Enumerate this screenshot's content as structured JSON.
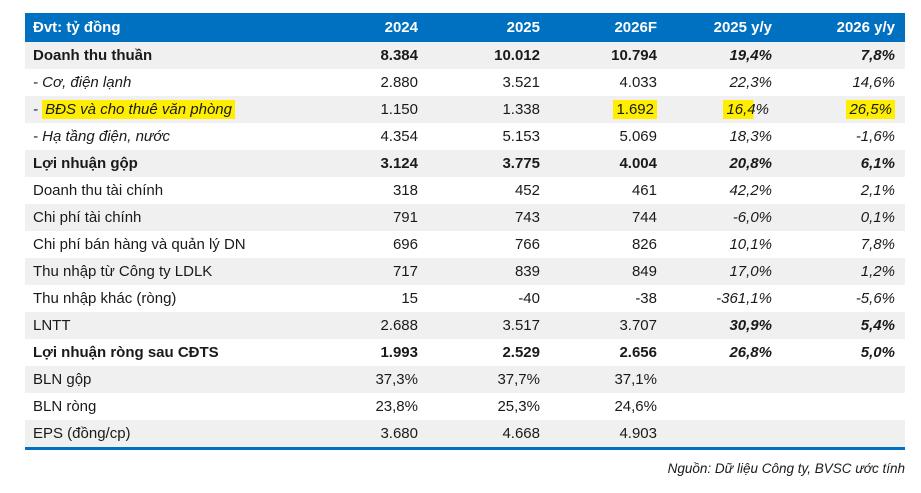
{
  "colors": {
    "header_bg": "#0070C0",
    "stripe": "#F0F0F0",
    "highlight": "#FFEE00",
    "bottom_border": "#0070C0"
  },
  "table": {
    "unit_label": "Đvt: tỷ đồng",
    "columns": [
      "2024",
      "2025",
      "2026F",
      "2025 y/y",
      "2026 y/y"
    ],
    "rows": [
      {
        "label": "Doanh thu thuần",
        "style": "bold",
        "values": [
          "8.384",
          "10.012",
          "10.794",
          "19,4%",
          "7,8%"
        ]
      },
      {
        "label": "Cơ, điện lạnh",
        "prefix": "- ",
        "style": "sub",
        "values": [
          "2.880",
          "3.521",
          "4.033",
          "22,3%",
          "14,6%"
        ]
      },
      {
        "label": "BĐS và cho thuê văn phòng",
        "prefix": "- ",
        "style": "sub",
        "highlight": {
          "label": true,
          "values": {
            "2": "full",
            "3": "partial",
            "4": "full"
          }
        },
        "values": [
          "1.150",
          "1.338",
          "1.692",
          "16,4%",
          "26,5%"
        ]
      },
      {
        "label": "Hạ tầng điện, nước",
        "prefix": "- ",
        "style": "sub",
        "values": [
          "4.354",
          "5.153",
          "5.069",
          "18,3%",
          "-1,6%"
        ]
      },
      {
        "label": "Lợi nhuận gộp",
        "style": "bold",
        "values": [
          "3.124",
          "3.775",
          "4.004",
          "20,8%",
          "6,1%"
        ]
      },
      {
        "label": "Doanh thu tài chính",
        "style": "normal",
        "values": [
          "318",
          "452",
          "461",
          "42,2%",
          "2,1%"
        ]
      },
      {
        "label": "Chi phí tài chính",
        "style": "normal",
        "values": [
          "791",
          "743",
          "744",
          "-6,0%",
          "0,1%"
        ]
      },
      {
        "label": "Chi phí bán hàng và quản lý DN",
        "style": "normal",
        "values": [
          "696",
          "766",
          "826",
          "10,1%",
          "7,8%"
        ]
      },
      {
        "label": "Thu nhập từ Công ty LDLK",
        "style": "normal",
        "values": [
          "717",
          "839",
          "849",
          "17,0%",
          "1,2%"
        ]
      },
      {
        "label": "Thu nhập khác (ròng)",
        "style": "normal",
        "values": [
          "15",
          "-40",
          "-38",
          "-361,1%",
          "-5,6%"
        ]
      },
      {
        "label": "LNTT",
        "style": "normal",
        "yy_bold": true,
        "values": [
          "2.688",
          "3.517",
          "3.707",
          "30,9%",
          "5,4%"
        ]
      },
      {
        "label": "Lợi nhuận ròng sau CĐTS",
        "style": "bold",
        "values": [
          "1.993",
          "2.529",
          "2.656",
          "26,8%",
          "5,0%"
        ]
      },
      {
        "label": "BLN gộp",
        "style": "normal",
        "values": [
          "37,3%",
          "37,7%",
          "37,1%",
          "",
          ""
        ]
      },
      {
        "label": "BLN ròng",
        "style": "normal",
        "values": [
          "23,8%",
          "25,3%",
          "24,6%",
          "",
          ""
        ]
      },
      {
        "label": "EPS (đồng/cp)",
        "style": "normal",
        "values": [
          "3.680",
          "4.668",
          "4.903",
          "",
          ""
        ]
      }
    ],
    "source_note": "Nguồn: Dữ liệu Công ty, BVSC ước tính"
  }
}
